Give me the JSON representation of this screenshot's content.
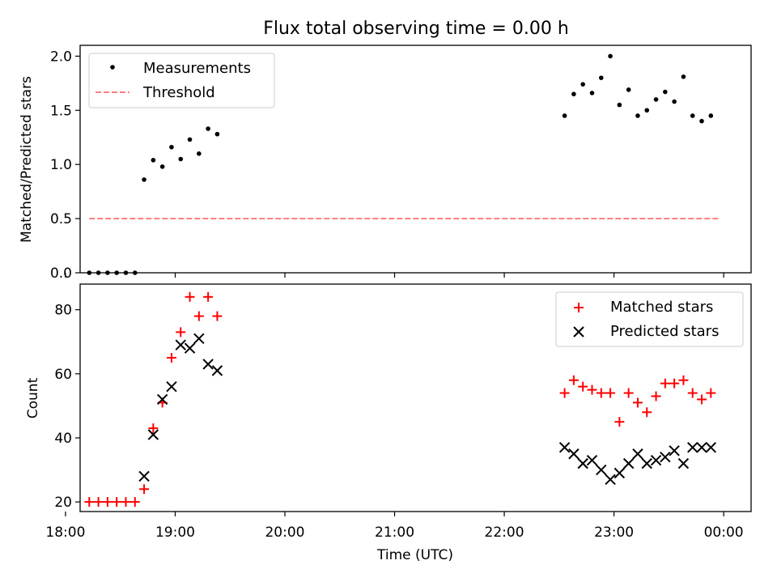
{
  "chart_data": [
    {
      "type": "scatter",
      "title": "Flux total observing time = 0.00 h",
      "xlabel": "",
      "ylabel": "Matched/Predicted stars",
      "xlim": [
        1088,
        1455
      ],
      "ylim": [
        0,
        2.1
      ],
      "yticks": [
        0.0,
        0.5,
        1.0,
        1.5,
        2.0
      ],
      "ytick_labels": [
        "0.0",
        "0.5",
        "1.0",
        "1.5",
        "2.0"
      ],
      "legend_position": "upper-left",
      "series": [
        {
          "name": "Measurements",
          "marker": "dot",
          "color": "#000000",
          "x": [
            "18:13",
            "18:18",
            "18:23",
            "18:28",
            "18:33",
            "18:38",
            "18:43",
            "18:48",
            "18:53",
            "18:58",
            "19:03",
            "19:08",
            "19:13",
            "19:18",
            "19:23",
            "19:28",
            "19:33",
            "19:38",
            "22:33",
            "22:38",
            "22:43",
            "22:48",
            "22:53",
            "22:58",
            "23:03",
            "23:08",
            "23:13",
            "23:18",
            "23:23",
            "23:28",
            "23:33",
            "23:38",
            "23:43",
            "23:48",
            "23:53",
            "23:58"
          ],
          "y": [
            0,
            0,
            0,
            0,
            0,
            0,
            0.86,
            1.04,
            0.98,
            1.16,
            1.05,
            1.23,
            1.1,
            1.33,
            1.28,
            null,
            null,
            null,
            1.45,
            1.65,
            1.74,
            1.66,
            1.8,
            2.0,
            1.55,
            1.69,
            1.45,
            1.5,
            1.6,
            1.67,
            1.58,
            1.81,
            1.45,
            1.4,
            1.45,
            null
          ]
        },
        {
          "name": "Threshold",
          "style": "dashed-line",
          "color": "#ff7f7f",
          "x": [
            "18:13",
            "23:58"
          ],
          "y": [
            0.5,
            0.5
          ]
        }
      ]
    },
    {
      "type": "scatter",
      "title": "",
      "xlabel": "Time (UTC)",
      "ylabel": "Count",
      "xlim": [
        1088,
        1455
      ],
      "ylim": [
        17,
        88
      ],
      "yticks": [
        20,
        40,
        60,
        80
      ],
      "ytick_labels": [
        "20",
        "40",
        "60",
        "80"
      ],
      "xticks": [
        1080,
        1140,
        1200,
        1260,
        1320,
        1380,
        1440
      ],
      "xtick_labels": [
        "18:00",
        "19:00",
        "20:00",
        "21:00",
        "22:00",
        "23:00",
        "00:00"
      ],
      "legend_position": "upper-right",
      "series": [
        {
          "name": "Matched stars",
          "marker": "plus",
          "color": "#ff0000",
          "x": [
            "18:13",
            "18:18",
            "18:23",
            "18:28",
            "18:33",
            "18:38",
            "18:43",
            "18:48",
            "18:53",
            "18:58",
            "19:03",
            "19:08",
            "19:13",
            "19:18",
            "19:23",
            "19:28",
            "22:33",
            "22:38",
            "22:43",
            "22:48",
            "22:53",
            "22:58",
            "23:03",
            "23:08",
            "23:13",
            "23:18",
            "23:23",
            "23:28",
            "23:33",
            "23:38",
            "23:43",
            "23:48",
            "23:53"
          ],
          "y": [
            20,
            20,
            20,
            20,
            20,
            20,
            24,
            43,
            51,
            65,
            73,
            84,
            78,
            84,
            78,
            null,
            54,
            58,
            56,
            55,
            54,
            54,
            45,
            54,
            51,
            48,
            53,
            57,
            57,
            58,
            54,
            52,
            54
          ]
        },
        {
          "name": "Predicted stars",
          "marker": "x",
          "color": "#000000",
          "x": [
            "18:43",
            "18:48",
            "18:53",
            "18:58",
            "19:03",
            "19:08",
            "19:13",
            "19:18",
            "19:23",
            "22:33",
            "22:38",
            "22:43",
            "22:48",
            "22:53",
            "22:58",
            "23:03",
            "23:08",
            "23:13",
            "23:18",
            "23:23",
            "23:28",
            "23:33",
            "23:38",
            "23:43",
            "23:48",
            "23:53"
          ],
          "y": [
            28,
            41,
            52,
            56,
            69,
            68,
            71,
            63,
            61,
            37,
            35,
            32,
            33,
            30,
            27,
            29,
            32,
            35,
            32,
            33,
            34,
            36,
            32,
            37,
            37,
            37
          ]
        }
      ]
    }
  ],
  "x_axis": {
    "label": "Time (UTC)",
    "tick_labels": [
      "18:00",
      "19:00",
      "20:00",
      "21:00",
      "22:00",
      "23:00",
      "00:00"
    ]
  },
  "colors": {
    "threshold": "#ff7f7f",
    "matched": "#ff0000",
    "predicted": "#000000",
    "measurements": "#000000"
  }
}
